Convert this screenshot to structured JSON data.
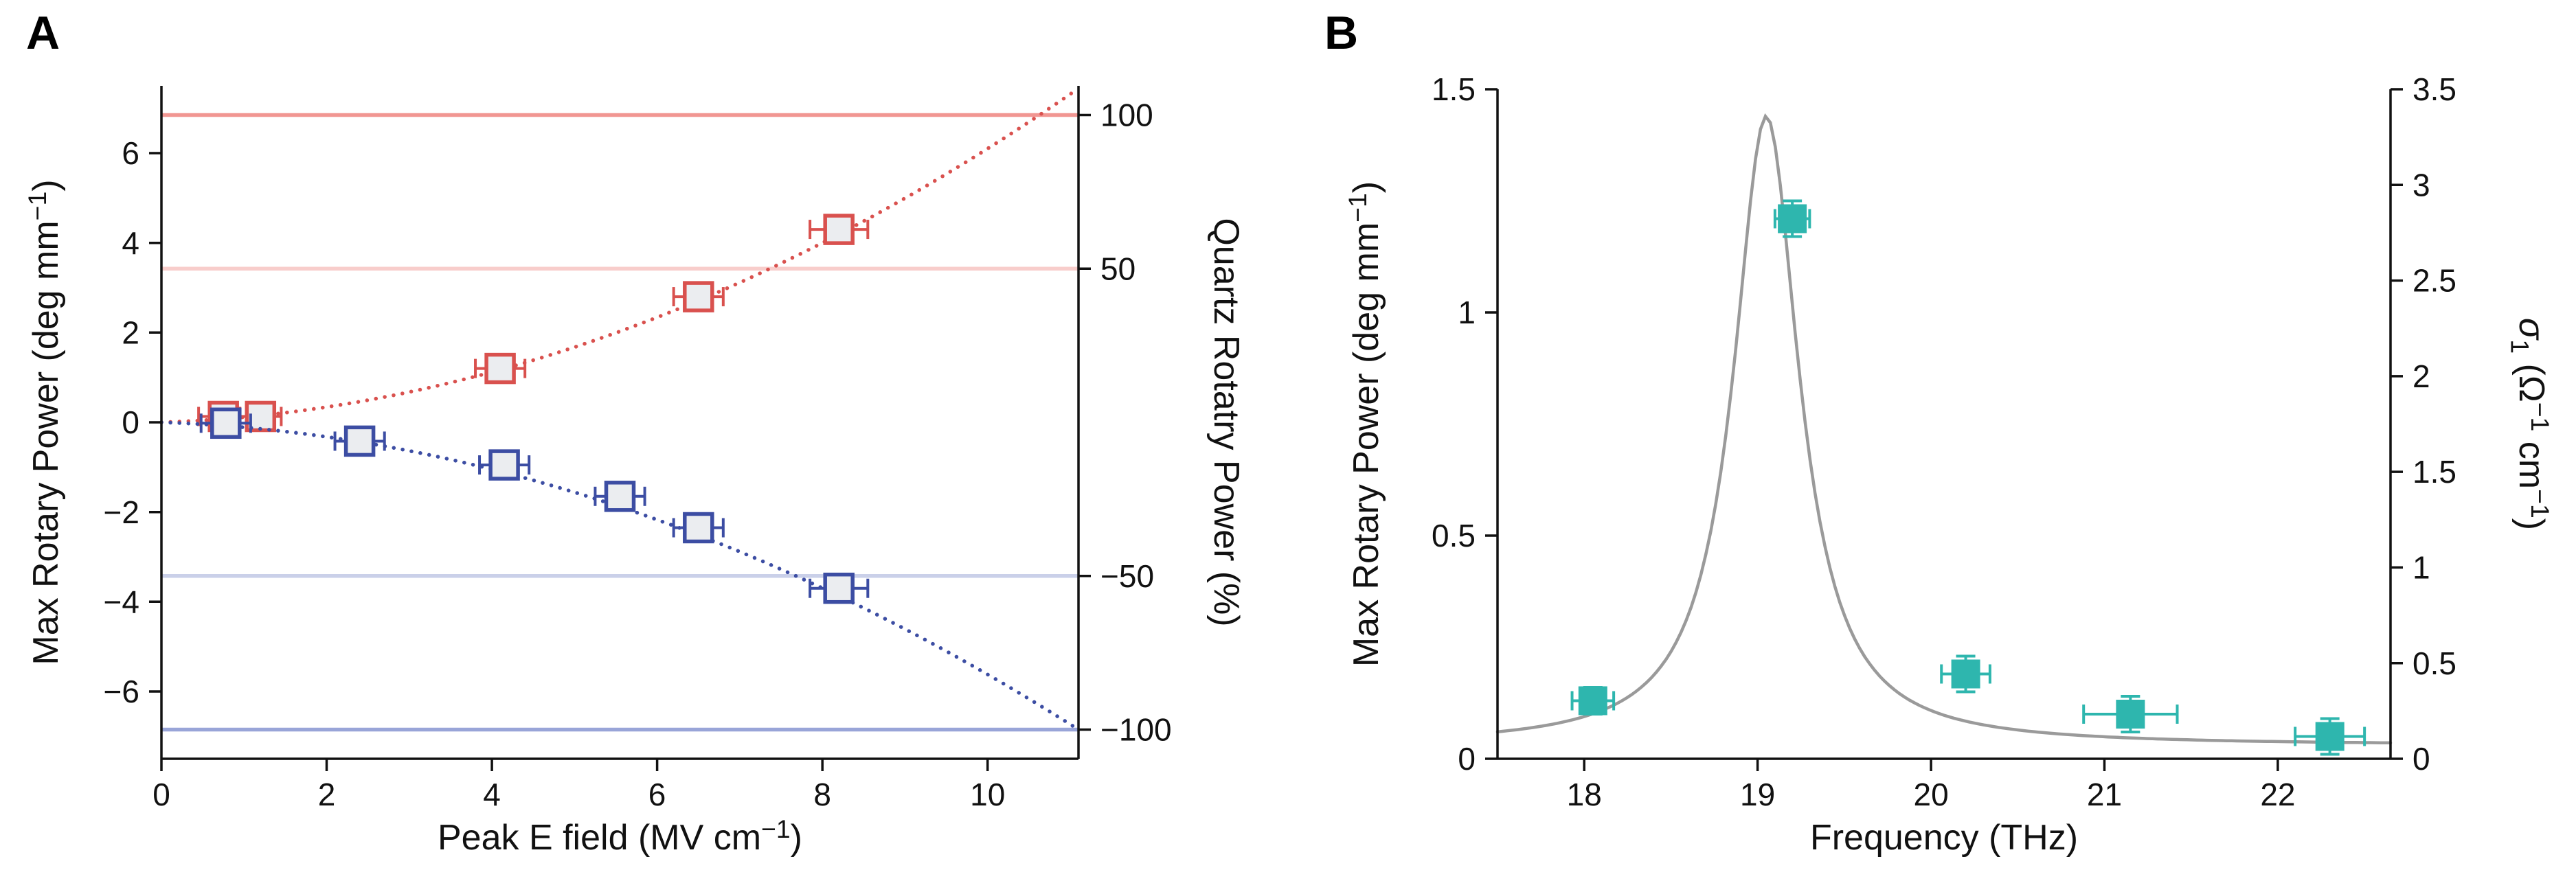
{
  "figure": {
    "background": "#ffffff",
    "text_color": "#111111"
  },
  "panelA": {
    "label": "A"
  },
  "panelB": {
    "label": "B"
  },
  "chart_data": [
    {
      "id": "chartA",
      "type": "scatter",
      "xlabel_parts": [
        {
          "t": "Peak E field (MV cm"
        },
        {
          "t": "−1",
          "sup": true
        },
        {
          "t": ")"
        }
      ],
      "ylabel_left_parts": [
        {
          "t": "Max Rotary Power (deg mm"
        },
        {
          "t": "−1",
          "sup": true
        },
        {
          "t": ")"
        }
      ],
      "ylabel_right_parts": [
        {
          "t": "Quartz Rotatry Power (%)"
        }
      ],
      "xlim": [
        0,
        11.1
      ],
      "ylim_left": [
        -7.5,
        7.5
      ],
      "ylim_right": [
        -109.5,
        109.5
      ],
      "xticks": [
        {
          "v": 0,
          "label": "0"
        },
        {
          "v": 2,
          "label": "2"
        },
        {
          "v": 4,
          "label": "4"
        },
        {
          "v": 6,
          "label": "6"
        },
        {
          "v": 8,
          "label": "8"
        },
        {
          "v": 10,
          "label": "10"
        }
      ],
      "yticks_left": [
        {
          "v": -6,
          "label": "−6"
        },
        {
          "v": -4,
          "label": "−4"
        },
        {
          "v": -2,
          "label": "−2"
        },
        {
          "v": 0,
          "label": "0"
        },
        {
          "v": 2,
          "label": "2"
        },
        {
          "v": 4,
          "label": "4"
        },
        {
          "v": 6,
          "label": "6"
        }
      ],
      "yticks_right": [
        {
          "v": 100,
          "label": "100"
        },
        {
          "v": 50,
          "label": "50"
        },
        {
          "v": -50,
          "label": "−50"
        },
        {
          "v": -100,
          "label": "−100"
        }
      ],
      "hlines": [
        {
          "right_value": 100,
          "color": "#f0908c",
          "width": 5.5,
          "opacity": 0.95
        },
        {
          "right_value": 50,
          "color": "#f8cac8",
          "width": 5.5,
          "opacity": 0.95
        },
        {
          "right_value": -50,
          "color": "#c7cde8",
          "width": 5.5,
          "opacity": 0.95
        },
        {
          "right_value": -100,
          "color": "#94a0d6",
          "width": 5.5,
          "opacity": 0.95
        }
      ],
      "series": [
        {
          "name": "positive-rotation",
          "color": "#d9514e",
          "marker_fill": "#ebedf0",
          "curve": {
            "kind": "poly2",
            "a": 0.055,
            "b": 0.06
          },
          "points": [
            {
              "x": 0.75,
              "y": 0.13,
              "xerr": 0.3
            },
            {
              "x": 1.2,
              "y": 0.13,
              "xerr": 0.25
            },
            {
              "x": 4.1,
              "y": 1.2,
              "xerr": 0.3
            },
            {
              "x": 6.5,
              "y": 2.8,
              "xerr": 0.3
            },
            {
              "x": 8.2,
              "y": 4.3,
              "xerr": 0.35
            }
          ]
        },
        {
          "name": "negative-rotation",
          "color": "#3c4da3",
          "marker_fill": "#ebedf0",
          "curve": {
            "kind": "poly2",
            "a": -0.05,
            "b": -0.062
          },
          "points": [
            {
              "x": 0.78,
              "y": -0.02,
              "xerr": 0.3
            },
            {
              "x": 2.4,
              "y": -0.42,
              "xerr": 0.3
            },
            {
              "x": 4.15,
              "y": -0.95,
              "xerr": 0.3
            },
            {
              "x": 5.55,
              "y": -1.65,
              "xerr": 0.3
            },
            {
              "x": 6.5,
              "y": -2.35,
              "xerr": 0.3
            },
            {
              "x": 8.2,
              "y": -3.7,
              "xerr": 0.35
            }
          ]
        }
      ]
    },
    {
      "id": "chartB",
      "type": "scatter",
      "xlabel_parts": [
        {
          "t": "Frequency (THz)"
        }
      ],
      "ylabel_left_parts": [
        {
          "t": "Max Rotary Power (deg mm"
        },
        {
          "t": "−1",
          "sup": true
        },
        {
          "t": ")"
        }
      ],
      "ylabel_right_parts": [
        {
          "t": "σ",
          "italic": true
        },
        {
          "t": "1",
          "sub": true
        },
        {
          "t": " (Ω"
        },
        {
          "t": "−1",
          "sup": true
        },
        {
          "t": " cm"
        },
        {
          "t": "−1",
          "sup": true
        },
        {
          "t": ")"
        }
      ],
      "xlim": [
        17.5,
        22.65
      ],
      "ylim_left": [
        0,
        1.5
      ],
      "ylim_right": [
        0,
        3.5
      ],
      "xticks": [
        {
          "v": 18,
          "label": "18"
        },
        {
          "v": 19,
          "label": "19"
        },
        {
          "v": 20,
          "label": "20"
        },
        {
          "v": 21,
          "label": "21"
        },
        {
          "v": 22,
          "label": "22"
        }
      ],
      "yticks_left": [
        {
          "v": 0,
          "label": "0"
        },
        {
          "v": 0.5,
          "label": "0.5"
        },
        {
          "v": 1,
          "label": "1"
        },
        {
          "v": 1.5,
          "label": "1.5"
        }
      ],
      "yticks_right": [
        {
          "v": 0,
          "label": "0"
        },
        {
          "v": 0.5,
          "label": "0.5"
        },
        {
          "v": 1,
          "label": "1"
        },
        {
          "v": 1.5,
          "label": "1.5"
        },
        {
          "v": 2,
          "label": "2"
        },
        {
          "v": 2.5,
          "label": "2.5"
        },
        {
          "v": 3,
          "label": "3"
        },
        {
          "v": 3.5,
          "label": "3.5"
        }
      ],
      "curve": {
        "kind": "lorentzian",
        "center": 19.05,
        "hwhm": 0.23,
        "amplitude": 1.41,
        "baseline": 0.03,
        "color": "#9a9a9a",
        "width": 4.5
      },
      "series": [
        {
          "name": "max-rotary-power",
          "color": "#2eb6ae",
          "marker_fill": "#2eb6ae",
          "points": [
            {
              "x": 18.05,
              "y": 0.13,
              "xerr": 0.12,
              "yerr": 0.03
            },
            {
              "x": 19.2,
              "y": 1.21,
              "xerr": 0.1,
              "yerr": 0.04
            },
            {
              "x": 20.2,
              "y": 0.19,
              "xerr": 0.14,
              "yerr": 0.04
            },
            {
              "x": 21.15,
              "y": 0.1,
              "xerr": 0.27,
              "yerr": 0.04
            },
            {
              "x": 22.3,
              "y": 0.05,
              "xerr": 0.2,
              "yerr": 0.04
            }
          ]
        }
      ]
    }
  ]
}
